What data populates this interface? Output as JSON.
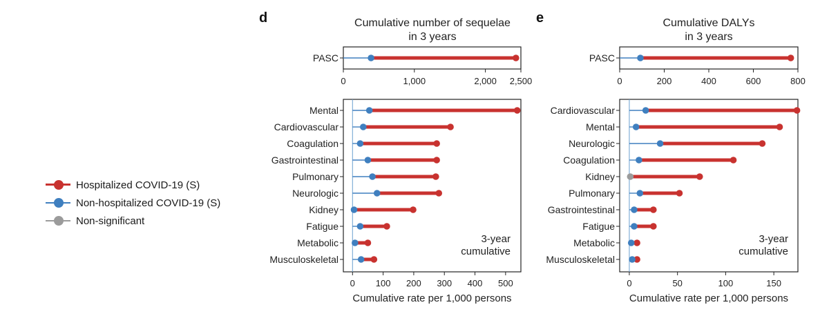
{
  "colors": {
    "hospitalized": "#c8322f",
    "non_hospitalized": "#3f7fbf",
    "non_significant": "#9b9b9b",
    "axis": "#222222"
  },
  "legend": {
    "items": [
      {
        "label": "Hospitalized COVID-19 (S)",
        "key": "hospitalized"
      },
      {
        "label": "Non-hospitalized COVID-19 (S)",
        "key": "non_hospitalized"
      },
      {
        "label": "Non-significant",
        "key": "non_significant"
      }
    ]
  },
  "chart_data": [
    {
      "panel": "d",
      "type": "dumbbell",
      "title": "Cumulative number of sequelae\nin 3 years",
      "top": {
        "categories": [
          "PASC"
        ],
        "non_hospitalized": [
          390
        ],
        "hospitalized": [
          2430
        ],
        "xlim": [
          0,
          2500
        ],
        "xticks": [
          0,
          1000,
          2000,
          2500
        ],
        "xtick_labels": [
          "0",
          "1,000",
          "2,000",
          "2,500"
        ]
      },
      "bottom": {
        "categories": [
          "Mental",
          "Cardiovascular",
          "Coagulation",
          "Gastrointestinal",
          "Pulmonary",
          "Neurologic",
          "Kidney",
          "Fatigue",
          "Metabolic",
          "Musculoskeletal"
        ],
        "non_hospitalized": [
          55,
          35,
          25,
          50,
          65,
          80,
          5,
          25,
          8,
          28
        ],
        "hospitalized": [
          538,
          320,
          275,
          275,
          272,
          282,
          198,
          112,
          50,
          70
        ],
        "non_significant": [
          null,
          null,
          null,
          null,
          null,
          null,
          null,
          null,
          null,
          null
        ],
        "xlim": [
          -30,
          550
        ],
        "xticks": [
          0,
          100,
          200,
          300,
          400,
          500
        ],
        "xtick_labels": [
          "0",
          "100",
          "200",
          "300",
          "400",
          "500"
        ],
        "xlabel": "Cumulative rate per 1,000 persons",
        "annotation": "3-year\ncumulative"
      }
    },
    {
      "panel": "e",
      "type": "dumbbell",
      "title": "Cumulative DALYs\nin 3 years",
      "top": {
        "categories": [
          "PASC"
        ],
        "non_hospitalized": [
          93
        ],
        "hospitalized": [
          768
        ],
        "xlim": [
          0,
          800
        ],
        "xticks": [
          0,
          200,
          400,
          600,
          800
        ],
        "xtick_labels": [
          "0",
          "200",
          "400",
          "600",
          "800"
        ]
      },
      "bottom": {
        "categories": [
          "Cardiovascular",
          "Mental",
          "Neurologic",
          "Coagulation",
          "Kidney",
          "Pulmonary",
          "Gastrointestinal",
          "Fatigue",
          "Metabolic",
          "Musculoskeletal"
        ],
        "non_hospitalized": [
          17,
          7,
          32,
          10,
          null,
          11,
          5,
          5,
          2,
          3
        ],
        "hospitalized": [
          174,
          156,
          138,
          108,
          73,
          52,
          25,
          25,
          8,
          8
        ],
        "non_significant": [
          null,
          null,
          null,
          null,
          1,
          null,
          null,
          null,
          null,
          null
        ],
        "xlim": [
          -10,
          175
        ],
        "xticks": [
          0,
          50,
          100,
          150
        ],
        "xtick_labels": [
          "0",
          "50",
          "100",
          "150"
        ],
        "xlabel": "Cumulative rate per 1,000 persons",
        "annotation": "3-year\ncumulative"
      }
    }
  ]
}
